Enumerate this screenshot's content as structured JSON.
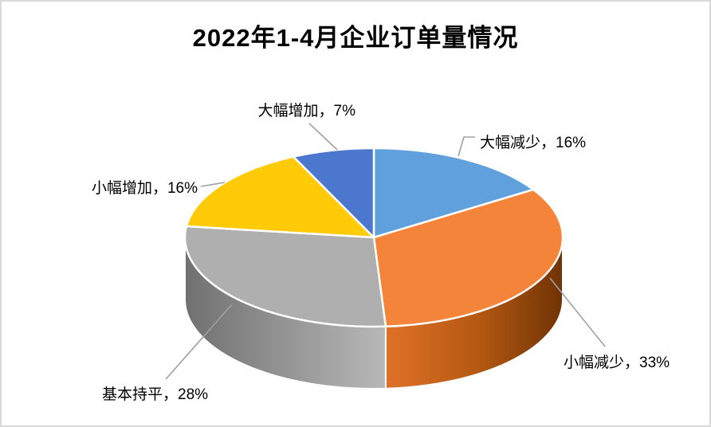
{
  "title": "2022年1-4月企业订单量情况",
  "chart_data": {
    "type": "pie",
    "style": "3d-pie",
    "title": "2022年1-4月企业订单量情况",
    "legend": "none",
    "data_labels": "category-name-and-percentage-with-leader-lines",
    "start_angle_deg_clockwise_from_top": 0,
    "label_separator": "，",
    "value_suffix": "%",
    "slices": [
      {
        "label": "大幅减少",
        "value": 16,
        "color": "#5FA0DD"
      },
      {
        "label": "小幅减少",
        "value": 33,
        "color": "#F5843B"
      },
      {
        "label": "基本持平",
        "value": 28,
        "color": "#AFAFAF"
      },
      {
        "label": "小幅增加",
        "value": 16,
        "color": "#FFCA08"
      },
      {
        "label": "大幅增加",
        "value": 7,
        "color": "#4C77CE"
      }
    ],
    "wall_shading": {
      "orange_wall_dark": "#6b3104",
      "orange_wall_light": "#e8762b",
      "gray_wall_dark": "#6f6f6f",
      "gray_wall_light": "#bdbdbd"
    },
    "leader_line_color": "#a0a0a0",
    "background_color": "#ffffff",
    "border_color": "#d9d9d9"
  }
}
